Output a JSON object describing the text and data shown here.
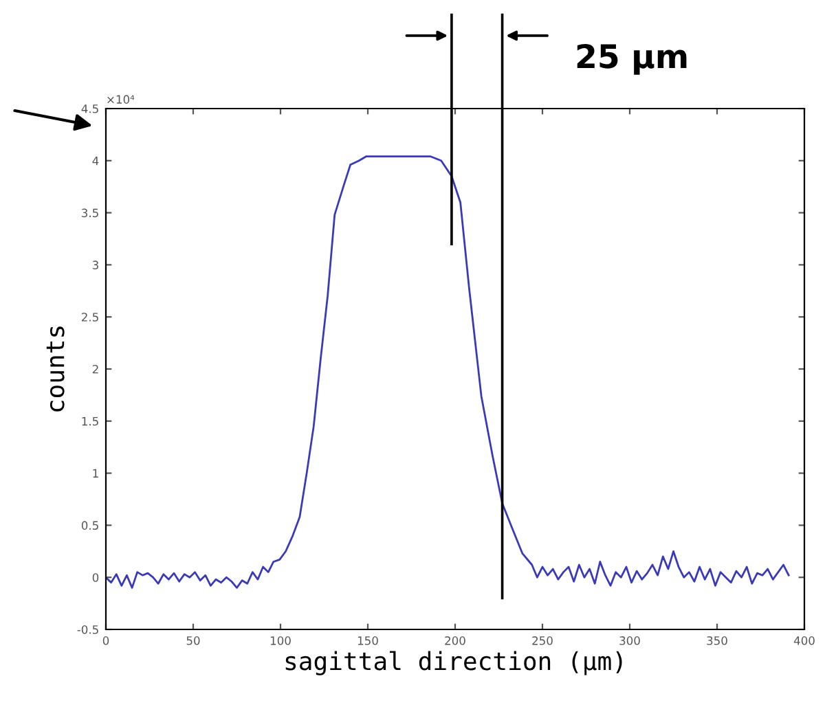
{
  "chart_data": {
    "type": "line",
    "xlabel": "sagittal direction (µm)",
    "ylabel": "counts",
    "annotations": [
      "×10⁴",
      "25 µm"
    ],
    "x": [
      0,
      3,
      6,
      9,
      12,
      15,
      18,
      21,
      24,
      27,
      30,
      33,
      36,
      39,
      42,
      45,
      48,
      51,
      54,
      57,
      60,
      63,
      66,
      69,
      72,
      75,
      78,
      81,
      84,
      87,
      90,
      93,
      96,
      99.5,
      103,
      107,
      111,
      115,
      119,
      123,
      127,
      131,
      136,
      140,
      145,
      149,
      155,
      160,
      170,
      180,
      186,
      192,
      198,
      203,
      208,
      215,
      221.5,
      227,
      232,
      238.5,
      244,
      247,
      250,
      253,
      256,
      259,
      262,
      265,
      268,
      271,
      274,
      277,
      280,
      283,
      286,
      289,
      292,
      295,
      298,
      301,
      304,
      307,
      310,
      313,
      316,
      319,
      322,
      325,
      328,
      331,
      334,
      337,
      340,
      343,
      346,
      349,
      352,
      355,
      358,
      361,
      364,
      367,
      370,
      373,
      376,
      379,
      382,
      385,
      388,
      391
    ],
    "series": [
      {
        "color": "#3a3ab8",
        "values": [
          0.0,
          -0.05,
          0.03,
          -0.08,
          0.02,
          -0.1,
          0.05,
          0.02,
          0.04,
          0.0,
          -0.06,
          0.03,
          -0.02,
          0.04,
          -0.04,
          0.03,
          0.0,
          0.05,
          -0.03,
          0.02,
          -0.08,
          -0.02,
          -0.05,
          0.0,
          -0.04,
          -0.1,
          -0.03,
          -0.06,
          0.05,
          -0.02,
          0.1,
          0.05,
          0.15,
          0.17,
          0.25,
          0.4,
          0.58,
          1.0,
          1.45,
          2.1,
          2.7,
          3.48,
          3.75,
          3.96,
          4.0,
          4.04,
          4.04,
          4.04,
          4.04,
          4.04,
          4.04,
          4.0,
          3.85,
          3.6,
          2.78,
          1.74,
          1.16,
          0.71,
          0.5,
          0.23,
          0.12,
          0.0,
          0.1,
          0.02,
          0.08,
          -0.02,
          0.05,
          0.1,
          -0.04,
          0.12,
          0.0,
          0.08,
          -0.06,
          0.15,
          0.02,
          -0.08,
          0.05,
          0.0,
          0.1,
          -0.05,
          0.06,
          -0.02,
          0.04,
          0.12,
          0.02,
          0.2,
          0.08,
          0.25,
          0.1,
          0.0,
          0.05,
          -0.04,
          0.1,
          -0.02,
          0.08,
          -0.08,
          0.05,
          0.0,
          -0.05,
          0.06,
          0.0,
          0.1,
          -0.06,
          0.04,
          0.02,
          0.08,
          -0.02,
          0.05,
          0.12,
          0.02
        ]
      }
    ],
    "xlim": [
      0,
      400
    ],
    "ylim": [
      -0.5,
      4.5
    ],
    "xticks": [
      0,
      50,
      100,
      150,
      200,
      250,
      300,
      350,
      400
    ],
    "yticks": [
      -0.5,
      0,
      0.5,
      1,
      1.5,
      2,
      2.5,
      3,
      3.5,
      4,
      4.5
    ],
    "ref_lines": [
      {
        "axis": "x",
        "value": 198,
        "color": "#000000"
      },
      {
        "axis": "x",
        "value": 227,
        "color": "#000000"
      }
    ],
    "grid": false,
    "legend": false,
    "marker": "none",
    "line_style": "solid"
  }
}
